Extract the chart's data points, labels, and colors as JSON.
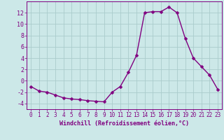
{
  "hours": [
    0,
    1,
    2,
    3,
    4,
    5,
    6,
    7,
    8,
    9,
    10,
    11,
    12,
    13,
    14,
    15,
    16,
    17,
    18,
    19,
    20,
    21,
    22,
    23
  ],
  "values": [
    -1.0,
    -1.8,
    -2.0,
    -2.5,
    -3.0,
    -3.2,
    -3.3,
    -3.5,
    -3.6,
    -3.7,
    -2.0,
    -1.0,
    1.5,
    4.5,
    12.0,
    12.2,
    12.2,
    13.0,
    12.0,
    7.5,
    4.0,
    2.5,
    1.0,
    -1.5
  ],
  "line_color": "#800080",
  "marker_color": "#800080",
  "bg_color": "#cce8e8",
  "grid_color": "#aacccc",
  "xlabel": "Windchill (Refroidissement éolien,°C)",
  "xlim": [
    -0.5,
    23.5
  ],
  "ylim": [
    -5,
    14
  ],
  "yticks": [
    -4,
    -2,
    0,
    2,
    4,
    6,
    8,
    10,
    12
  ],
  "xticks": [
    0,
    1,
    2,
    3,
    4,
    5,
    6,
    7,
    8,
    9,
    10,
    11,
    12,
    13,
    14,
    15,
    16,
    17,
    18,
    19,
    20,
    21,
    22,
    23
  ],
  "axis_color": "#800080",
  "tick_label_color": "#800080",
  "xlabel_color": "#800080",
  "linewidth": 1.0,
  "markersize": 2.5,
  "tick_fontsize": 5.5,
  "xlabel_fontsize": 6.0
}
